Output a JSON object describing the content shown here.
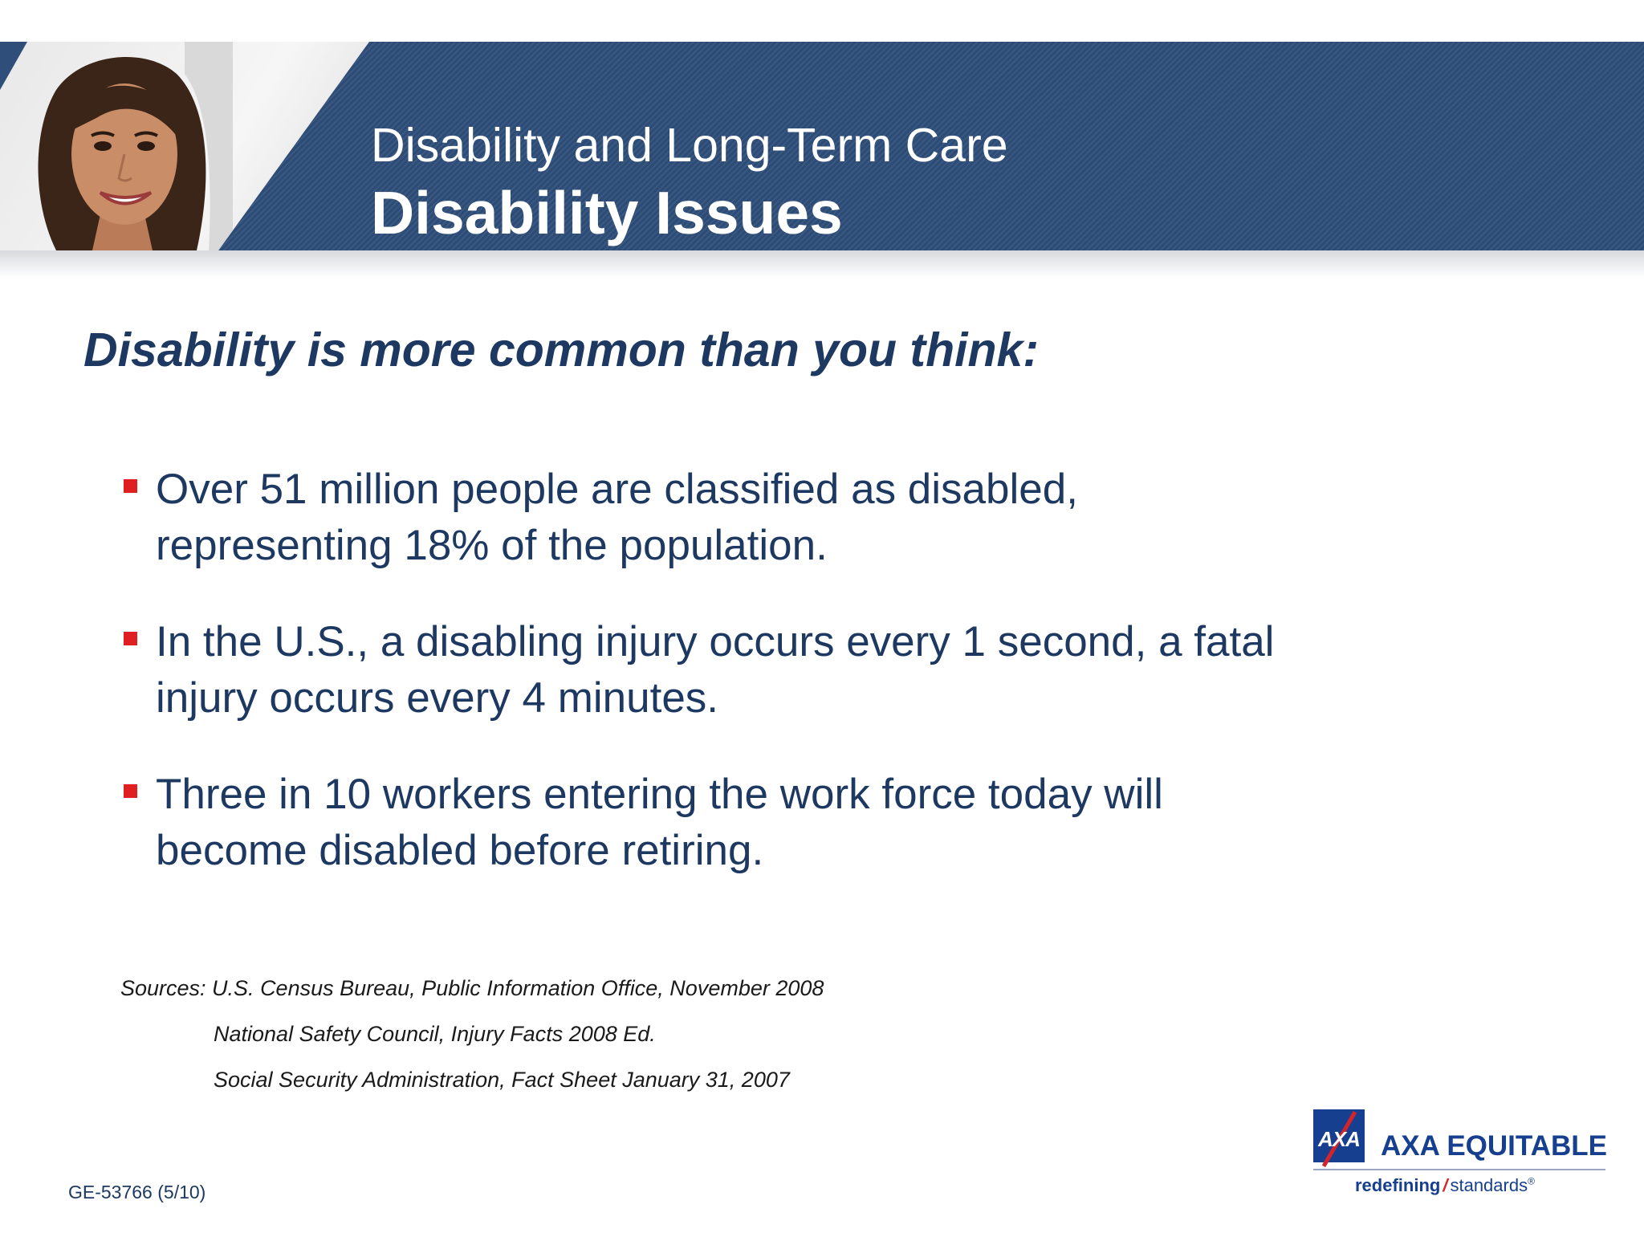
{
  "header": {
    "super_title": "Disability and Long-Term Care",
    "title": "Disability Issues"
  },
  "headline": "Disability is more common than you think:",
  "bullets": [
    {
      "text": "Over 51 million people are classified as disabled, representing 18% of the population."
    },
    {
      "text": "In the U.S., a disabling injury occurs every 1 second, a fatal injury occurs every 4 minutes."
    },
    {
      "text": "Three in 10 workers entering the work force today will become disabled before retiring."
    }
  ],
  "sources": {
    "line1": "Sources: U.S. Census Bureau, Public Information Office, November 2008",
    "line2": "National Safety Council, Injury Facts 2008 Ed.",
    "line3": "Social Security Administration, Fact Sheet January 31, 2007"
  },
  "footer": {
    "code": "GE-53766 (5/10)"
  },
  "logo": {
    "mark": "AXA",
    "name": "AXA EQUITABLE",
    "tag_a": "redefining",
    "tag_slash": "/",
    "tag_b": "standards",
    "tag_reg": "®"
  },
  "colors": {
    "banner": "#2f4f7a",
    "navy_text": "#1d3861",
    "bullet": "#e02020",
    "axa_blue": "#173f8f",
    "axa_red": "#d3242c"
  },
  "icons": {
    "bullet": "square-bullet-icon",
    "portrait": "woman-portrait-photo"
  }
}
